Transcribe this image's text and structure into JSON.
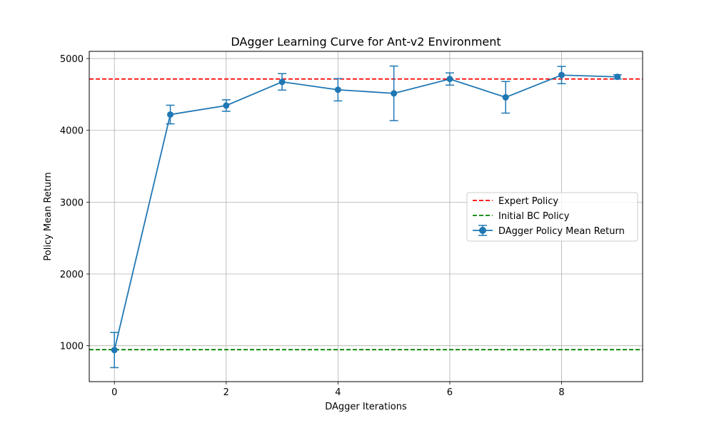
{
  "chart_data": {
    "type": "line",
    "title": "DAgger Learning Curve for Ant-v2 Environment",
    "xlabel": "DAgger Iterations",
    "ylabel": "Policy Mean Return",
    "xlim": [
      -0.45,
      9.45
    ],
    "ylim": [
      500,
      5100
    ],
    "xticks": [
      0,
      2,
      4,
      6,
      8
    ],
    "yticks": [
      1000,
      2000,
      3000,
      4000,
      5000
    ],
    "grid": true,
    "legend_position": "center-right",
    "series": [
      {
        "name": "DAgger Policy Mean Return",
        "color": "#1f77b4",
        "x": [
          0,
          1,
          2,
          3,
          4,
          5,
          6,
          7,
          8,
          9
        ],
        "y": [
          940,
          4220,
          4345,
          4675,
          4565,
          4515,
          4715,
          4460,
          4770,
          4745
        ],
        "yerr": [
          245,
          130,
          80,
          115,
          155,
          380,
          85,
          220,
          120,
          30
        ]
      }
    ],
    "reference_lines": [
      {
        "name": "Expert Policy",
        "y": 4715,
        "color": "#ff0000",
        "style": "dashed"
      },
      {
        "name": "Initial BC Policy",
        "y": 945,
        "color": "#008000",
        "style": "dashed"
      }
    ]
  }
}
